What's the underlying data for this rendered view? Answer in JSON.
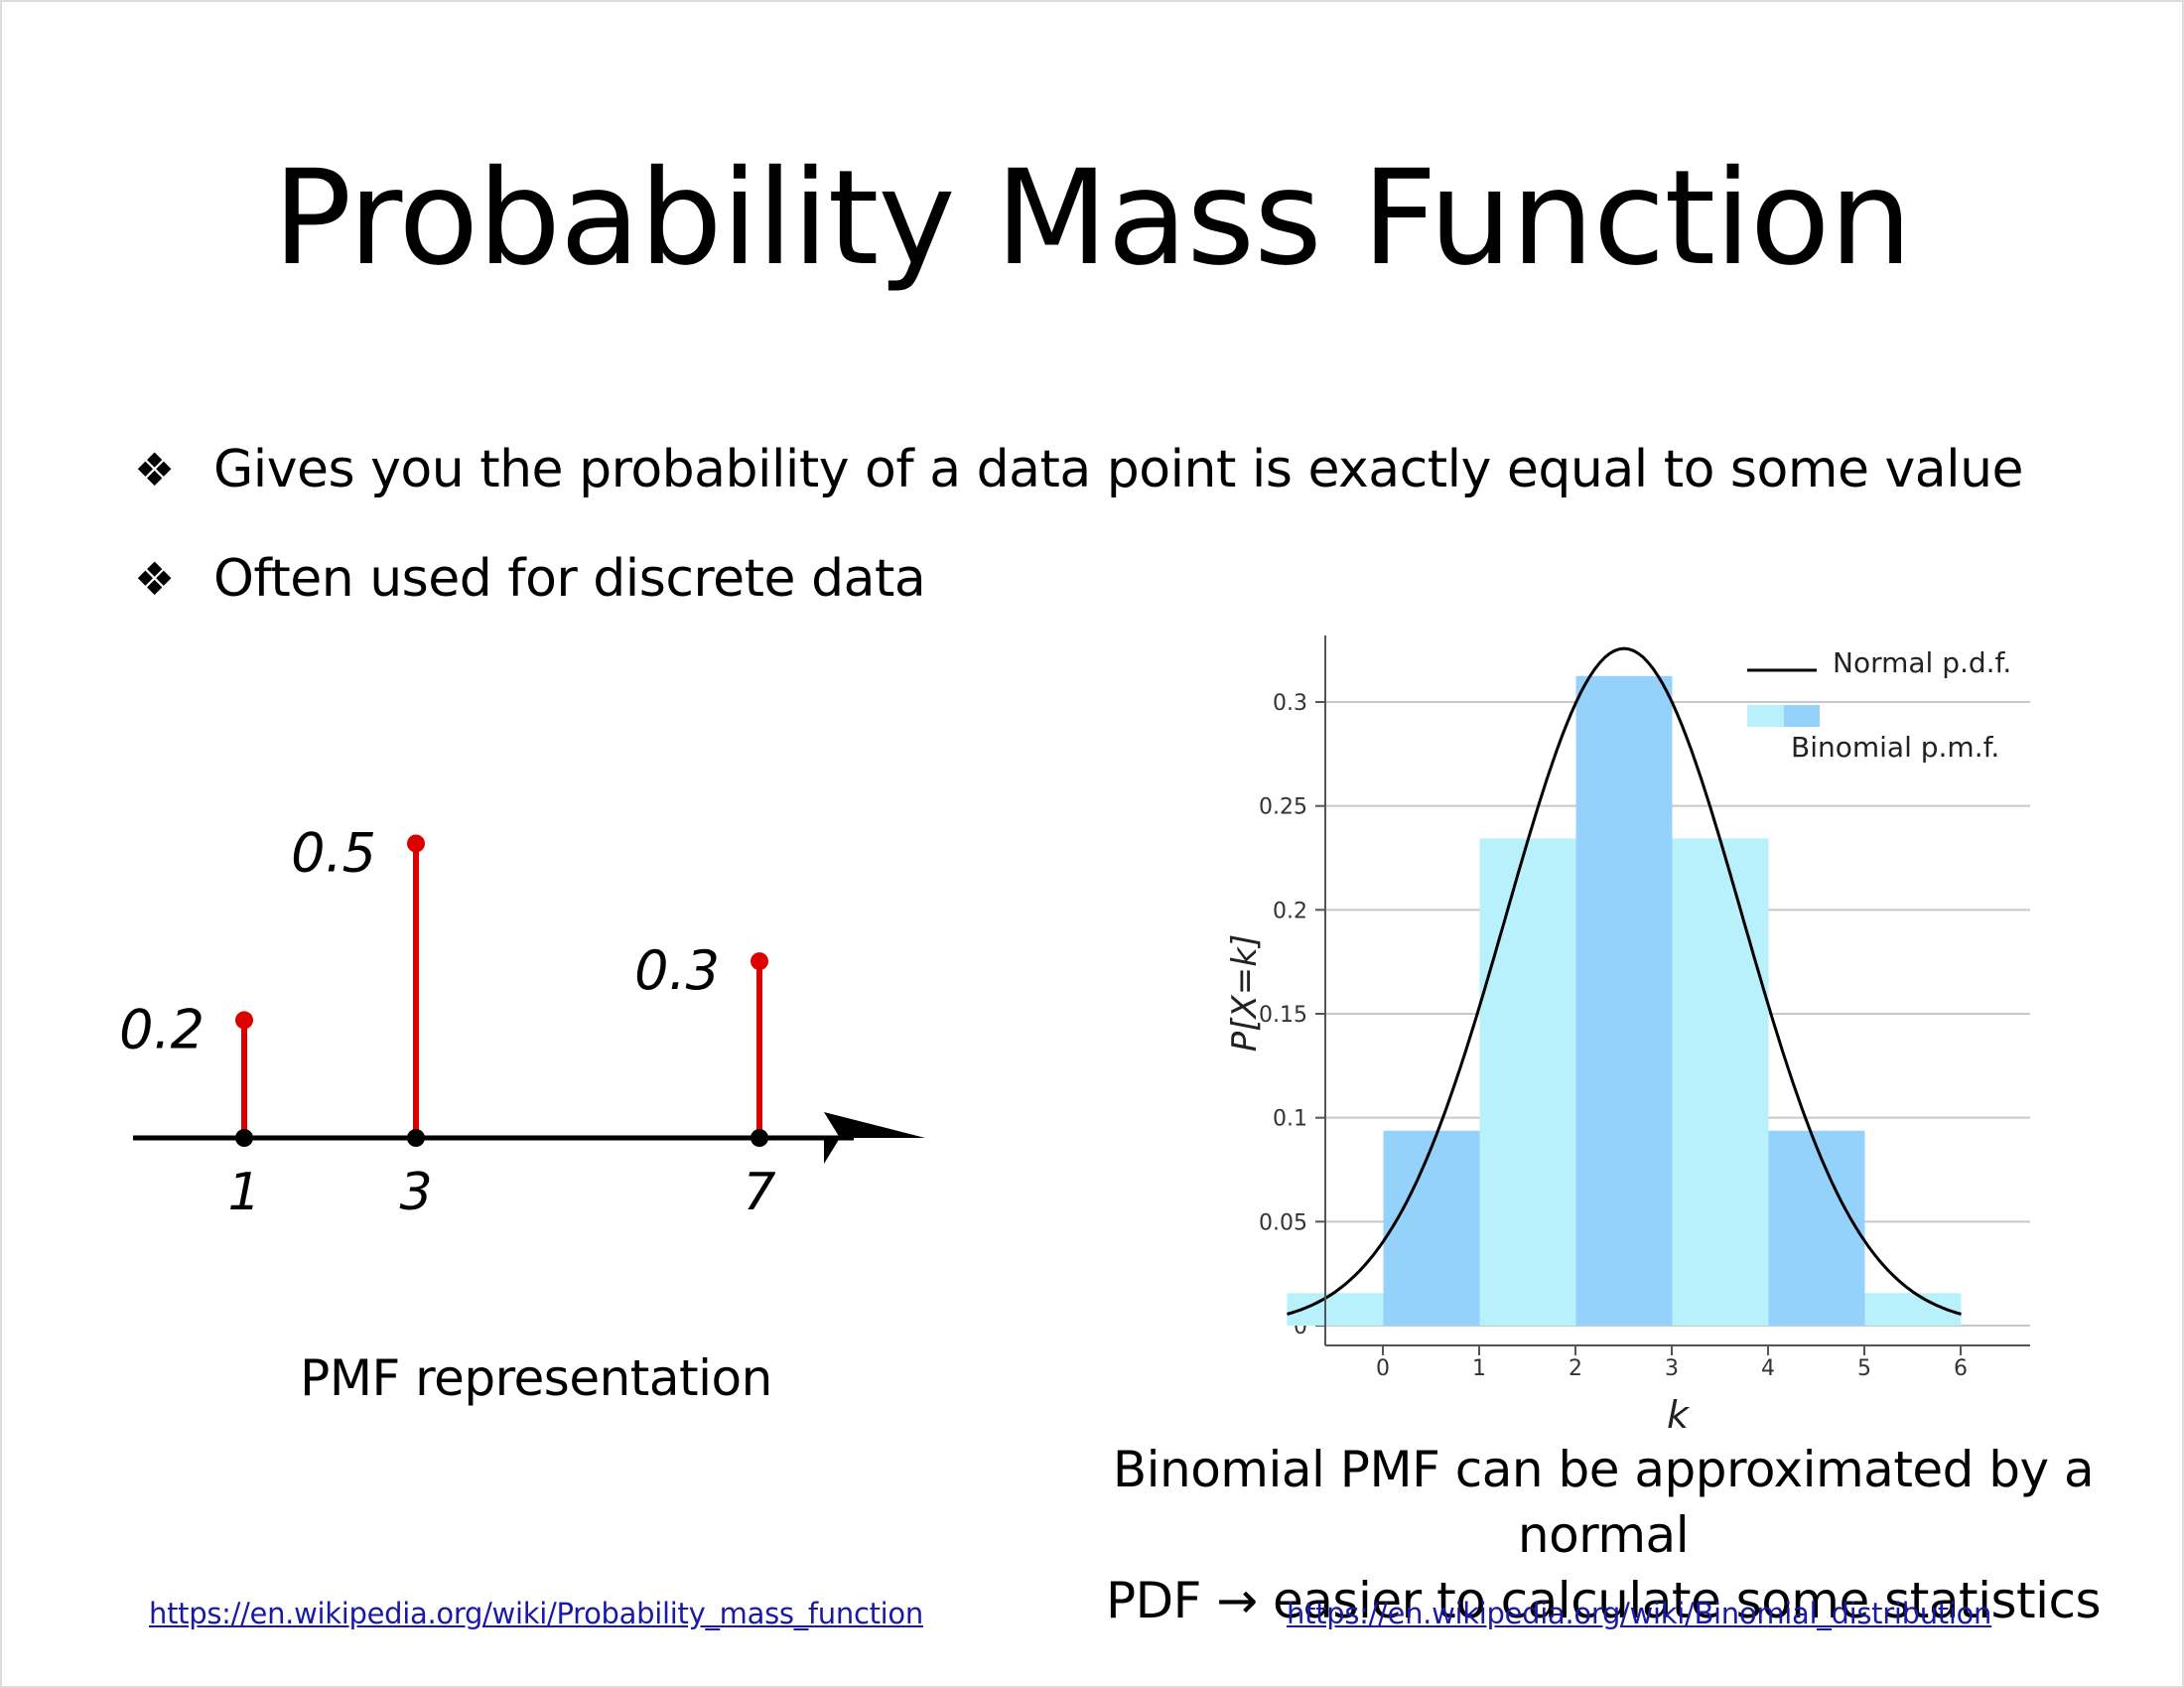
{
  "slide": {
    "title": "Probability Mass Function",
    "bullet_icon": "four-diamond-bullet-icon",
    "bullets": [
      "Gives you the probability of a data point is exactly equal to some value",
      "Often used for discrete data"
    ],
    "left_caption": "PMF representation",
    "right_caption_line1": "Binomial PMF can be approximated by a normal",
    "right_caption_line2": "PDF → easier to calculate some statistics",
    "left_link": "https://en.wikipedia.org/wiki/Probability_mass_function",
    "right_link": "https://en.wikipedia.org/wiki/Binomial_distribution"
  },
  "chart_data": [
    {
      "type": "scatter",
      "style": "stem",
      "x": [
        1,
        3,
        7
      ],
      "values": [
        0.2,
        0.5,
        0.3
      ],
      "x_tick_labels": [
        "1",
        "3",
        "7"
      ],
      "data_labels": [
        "0.2",
        "0.5",
        "0.3"
      ],
      "colors": {
        "stem": "#dd0000",
        "axis": "#000000"
      }
    },
    {
      "type": "bar",
      "categories": [
        "0",
        "1",
        "2",
        "3",
        "4",
        "5",
        "6"
      ],
      "series": [
        {
          "name": "Binomial p.m.f.",
          "values": [
            0.015625,
            0.09375,
            0.234375,
            0.3125,
            0.234375,
            0.09375,
            0.015625
          ]
        },
        {
          "name": "Normal p.d.f.",
          "type": "line",
          "mean": 3,
          "sd": 1.2247
        }
      ],
      "xlabel": "k",
      "ylabel": "P[X=k]",
      "ylim": [
        0,
        0.33
      ],
      "xlim": [
        -0.5,
        6.5
      ],
      "y_ticks": [
        "0",
        "0.05",
        "0.1",
        "0.15",
        "0.2",
        "0.25",
        "0.3"
      ],
      "grid": true,
      "legend": "top-right",
      "colors": {
        "light": "#b8f0fb",
        "dark": "#94d2fc",
        "curve": "#000000"
      }
    }
  ]
}
